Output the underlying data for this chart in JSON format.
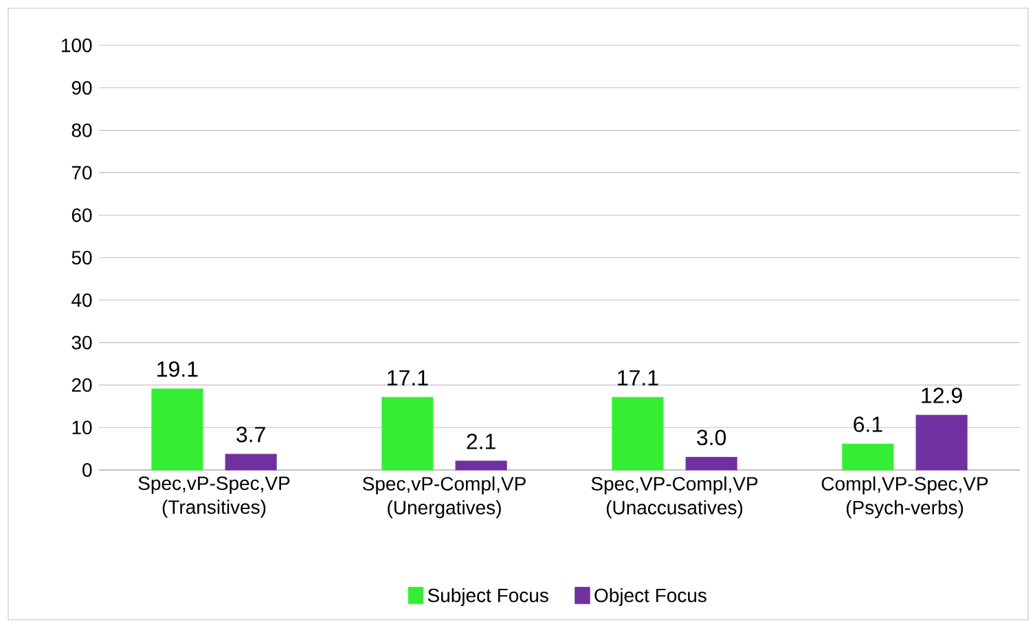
{
  "chart_data": {
    "type": "bar",
    "categories": [
      "Spec,vP-Spec,VP (Transitives)",
      "Spec,vP-Compl,VP (Unergatives)",
      "Spec,VP-Compl,VP (Unaccusatives)",
      "Compl,VP-Spec,VP (Psych-verbs)"
    ],
    "series": [
      {
        "name": "Subject Focus",
        "color": "#33ee33",
        "values": [
          19.1,
          17.1,
          17.1,
          6.1
        ],
        "value_labels": [
          "19.1",
          "17.1",
          "17.1",
          "6.1"
        ]
      },
      {
        "name": "Object Focus",
        "color": "#7030a0",
        "values": [
          3.7,
          2.1,
          3.0,
          12.9
        ],
        "value_labels": [
          "3.7",
          "2.1",
          "3.0",
          "12.9"
        ]
      }
    ],
    "ylim": [
      0,
      100
    ],
    "yticks": [
      0,
      10,
      20,
      30,
      40,
      50,
      60,
      70,
      80,
      90,
      100
    ],
    "grid": "y",
    "legend": "bottom"
  }
}
